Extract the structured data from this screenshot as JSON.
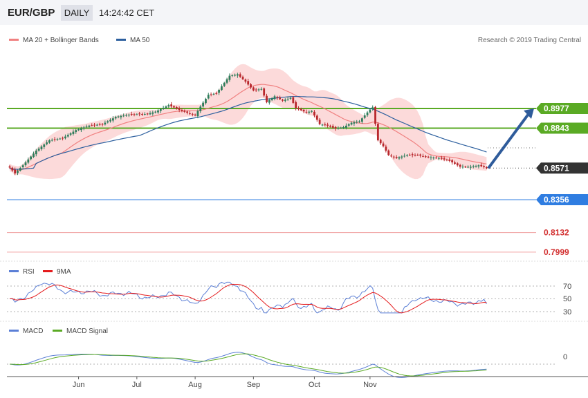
{
  "header": {
    "pair": "EUR/GBP",
    "timeframe": "DAILY",
    "time": "14:24:42 CET"
  },
  "colors": {
    "up": "#2e7d5b",
    "down": "#b8272c",
    "ma20": "#f08080",
    "band": "#fbd3d3",
    "ma50": "#2c5f9e",
    "support": "#5aaa24",
    "resist": "#2f7de1",
    "rsi": "#5b7fd6",
    "rsi_ma": "#e41a1c",
    "macd": "#5b7fd6",
    "macd_signal": "#5aaa24",
    "arrow": "#2f5c9b",
    "price_tag": "#333333",
    "level_line": "#f0a0a0"
  },
  "legend": {
    "ma20": "MA 20 + Bollinger Bands",
    "ma50": "MA 50"
  },
  "source": "Research © 2019 Trading Central",
  "levels": [
    {
      "value": 0.8977,
      "label": "0.8977",
      "kind": "support",
      "tag": "green"
    },
    {
      "value": 0.8843,
      "label": "0.8843",
      "kind": "support",
      "tag": "green"
    },
    {
      "value": 0.8571,
      "label": "0.8571",
      "kind": "last",
      "tag": "dark"
    },
    {
      "value": 0.8356,
      "label": "0.8356",
      "kind": "resist",
      "tag": "blue"
    },
    {
      "value": 0.8132,
      "label": "0.8132",
      "kind": "minor",
      "tag": "none"
    },
    {
      "value": 0.7999,
      "label": "0.7999",
      "kind": "minor",
      "tag": "none"
    }
  ],
  "rsi_panel": {
    "legend_rsi": "RSI",
    "legend_ma": "9MA",
    "ticks": [
      70,
      50,
      30
    ],
    "last": 42
  },
  "macd_panel": {
    "legend_macd": "MACD",
    "legend_signal": "MACD Signal",
    "ticks": [
      0
    ]
  },
  "chart_data": {
    "type": "candlestick",
    "x_ticks": [
      "Jun",
      "Jul",
      "Aug",
      "Sep",
      "Oct",
      "Nov"
    ],
    "anchors": [
      {
        "i": 0,
        "close": 0.8575
      },
      {
        "i": 2,
        "close": 0.8535
      },
      {
        "i": 5,
        "close": 0.859
      },
      {
        "i": 10,
        "close": 0.869
      },
      {
        "i": 15,
        "close": 0.876
      },
      {
        "i": 20,
        "close": 0.8775
      },
      {
        "i": 25,
        "close": 0.883
      },
      {
        "i": 30,
        "close": 0.886
      },
      {
        "i": 35,
        "close": 0.887
      },
      {
        "i": 40,
        "close": 0.892
      },
      {
        "i": 45,
        "close": 0.8935
      },
      {
        "i": 52,
        "close": 0.894
      },
      {
        "i": 55,
        "close": 0.8955
      },
      {
        "i": 60,
        "close": 0.9
      },
      {
        "i": 65,
        "close": 0.896
      },
      {
        "i": 70,
        "close": 0.893
      },
      {
        "i": 72,
        "close": 0.899
      },
      {
        "i": 75,
        "close": 0.907
      },
      {
        "i": 78,
        "close": 0.908
      },
      {
        "i": 83,
        "close": 0.92
      },
      {
        "i": 86,
        "close": 0.921
      },
      {
        "i": 89,
        "close": 0.916
      },
      {
        "i": 92,
        "close": 0.91
      },
      {
        "i": 95,
        "close": 0.911
      },
      {
        "i": 97,
        "close": 0.902
      },
      {
        "i": 100,
        "close": 0.906
      },
      {
        "i": 103,
        "close": 0.903
      },
      {
        "i": 106,
        "close": 0.905
      },
      {
        "i": 108,
        "close": 0.898
      },
      {
        "i": 112,
        "close": 0.895
      },
      {
        "i": 114,
        "close": 0.896
      },
      {
        "i": 117,
        "close": 0.887
      },
      {
        "i": 120,
        "close": 0.886
      },
      {
        "i": 123,
        "close": 0.884
      },
      {
        "i": 126,
        "close": 0.885
      },
      {
        "i": 129,
        "close": 0.888
      },
      {
        "i": 132,
        "close": 0.889
      },
      {
        "i": 136,
        "close": 0.897
      },
      {
        "i": 137,
        "close": 0.8985
      },
      {
        "i": 139,
        "close": 0.876
      },
      {
        "i": 141,
        "close": 0.872
      },
      {
        "i": 143,
        "close": 0.866
      },
      {
        "i": 146,
        "close": 0.864
      },
      {
        "i": 150,
        "close": 0.866
      },
      {
        "i": 154,
        "close": 0.866
      },
      {
        "i": 158,
        "close": 0.8645
      },
      {
        "i": 162,
        "close": 0.864
      },
      {
        "i": 166,
        "close": 0.862
      },
      {
        "i": 170,
        "close": 0.858
      },
      {
        "i": 174,
        "close": 0.858
      },
      {
        "i": 177,
        "close": 0.859
      },
      {
        "i": 180,
        "close": 0.8571
      }
    ],
    "n": 181,
    "forecast": {
      "from": 0.8571,
      "to": 0.8977
    },
    "title": "",
    "xlabel": "",
    "ylabel": ""
  }
}
